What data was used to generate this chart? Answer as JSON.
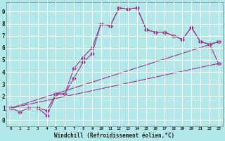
{
  "title": "",
  "xlabel": "Windchill (Refroidissement éolien,°C)",
  "ylabel": "",
  "background_color": "#b3e8e8",
  "grid_color": "#ffffff",
  "line_color": "#993399",
  "x_ticks": [
    0,
    1,
    2,
    3,
    4,
    5,
    6,
    7,
    8,
    9,
    10,
    11,
    12,
    13,
    14,
    15,
    16,
    17,
    18,
    19,
    20,
    21,
    22,
    23
  ],
  "y_ticks": [
    0,
    1,
    2,
    3,
    4,
    5,
    6,
    7,
    8,
    9
  ],
  "xlim": [
    -0.5,
    23.5
  ],
  "ylim": [
    -0.5,
    9.8
  ],
  "line1_x": [
    0,
    1,
    2,
    3,
    4,
    5,
    6,
    7,
    8,
    9,
    10,
    11,
    12,
    13,
    14,
    15,
    16,
    17,
    18,
    19,
    20,
    21,
    22,
    23
  ],
  "line1_y": [
    1.0,
    0.7,
    1.0,
    1.0,
    0.8,
    2.2,
    2.2,
    4.3,
    5.2,
    6.0,
    8.0,
    7.8,
    9.3,
    9.2,
    9.3,
    7.5,
    7.3,
    7.3,
    7.0,
    6.7,
    7.7,
    6.5,
    6.3,
    6.5
  ],
  "line2_x": [
    0,
    3,
    4,
    5,
    6,
    7,
    8,
    9,
    10,
    11,
    12,
    13,
    14,
    15,
    16,
    17,
    18,
    19,
    20,
    21,
    22,
    23
  ],
  "line2_y": [
    1.0,
    1.0,
    0.4,
    2.1,
    2.2,
    3.5,
    4.8,
    5.5,
    8.0,
    7.8,
    9.3,
    9.2,
    9.3,
    7.5,
    7.3,
    7.3,
    7.0,
    6.7,
    7.7,
    6.5,
    6.3,
    4.7
  ],
  "line3_x": [
    0,
    23
  ],
  "line3_y": [
    1.0,
    4.7
  ],
  "line4_x": [
    0,
    23
  ],
  "line4_y": [
    1.0,
    6.5
  ],
  "marker": "D",
  "markersize": 2.5,
  "linewidth": 0.8
}
